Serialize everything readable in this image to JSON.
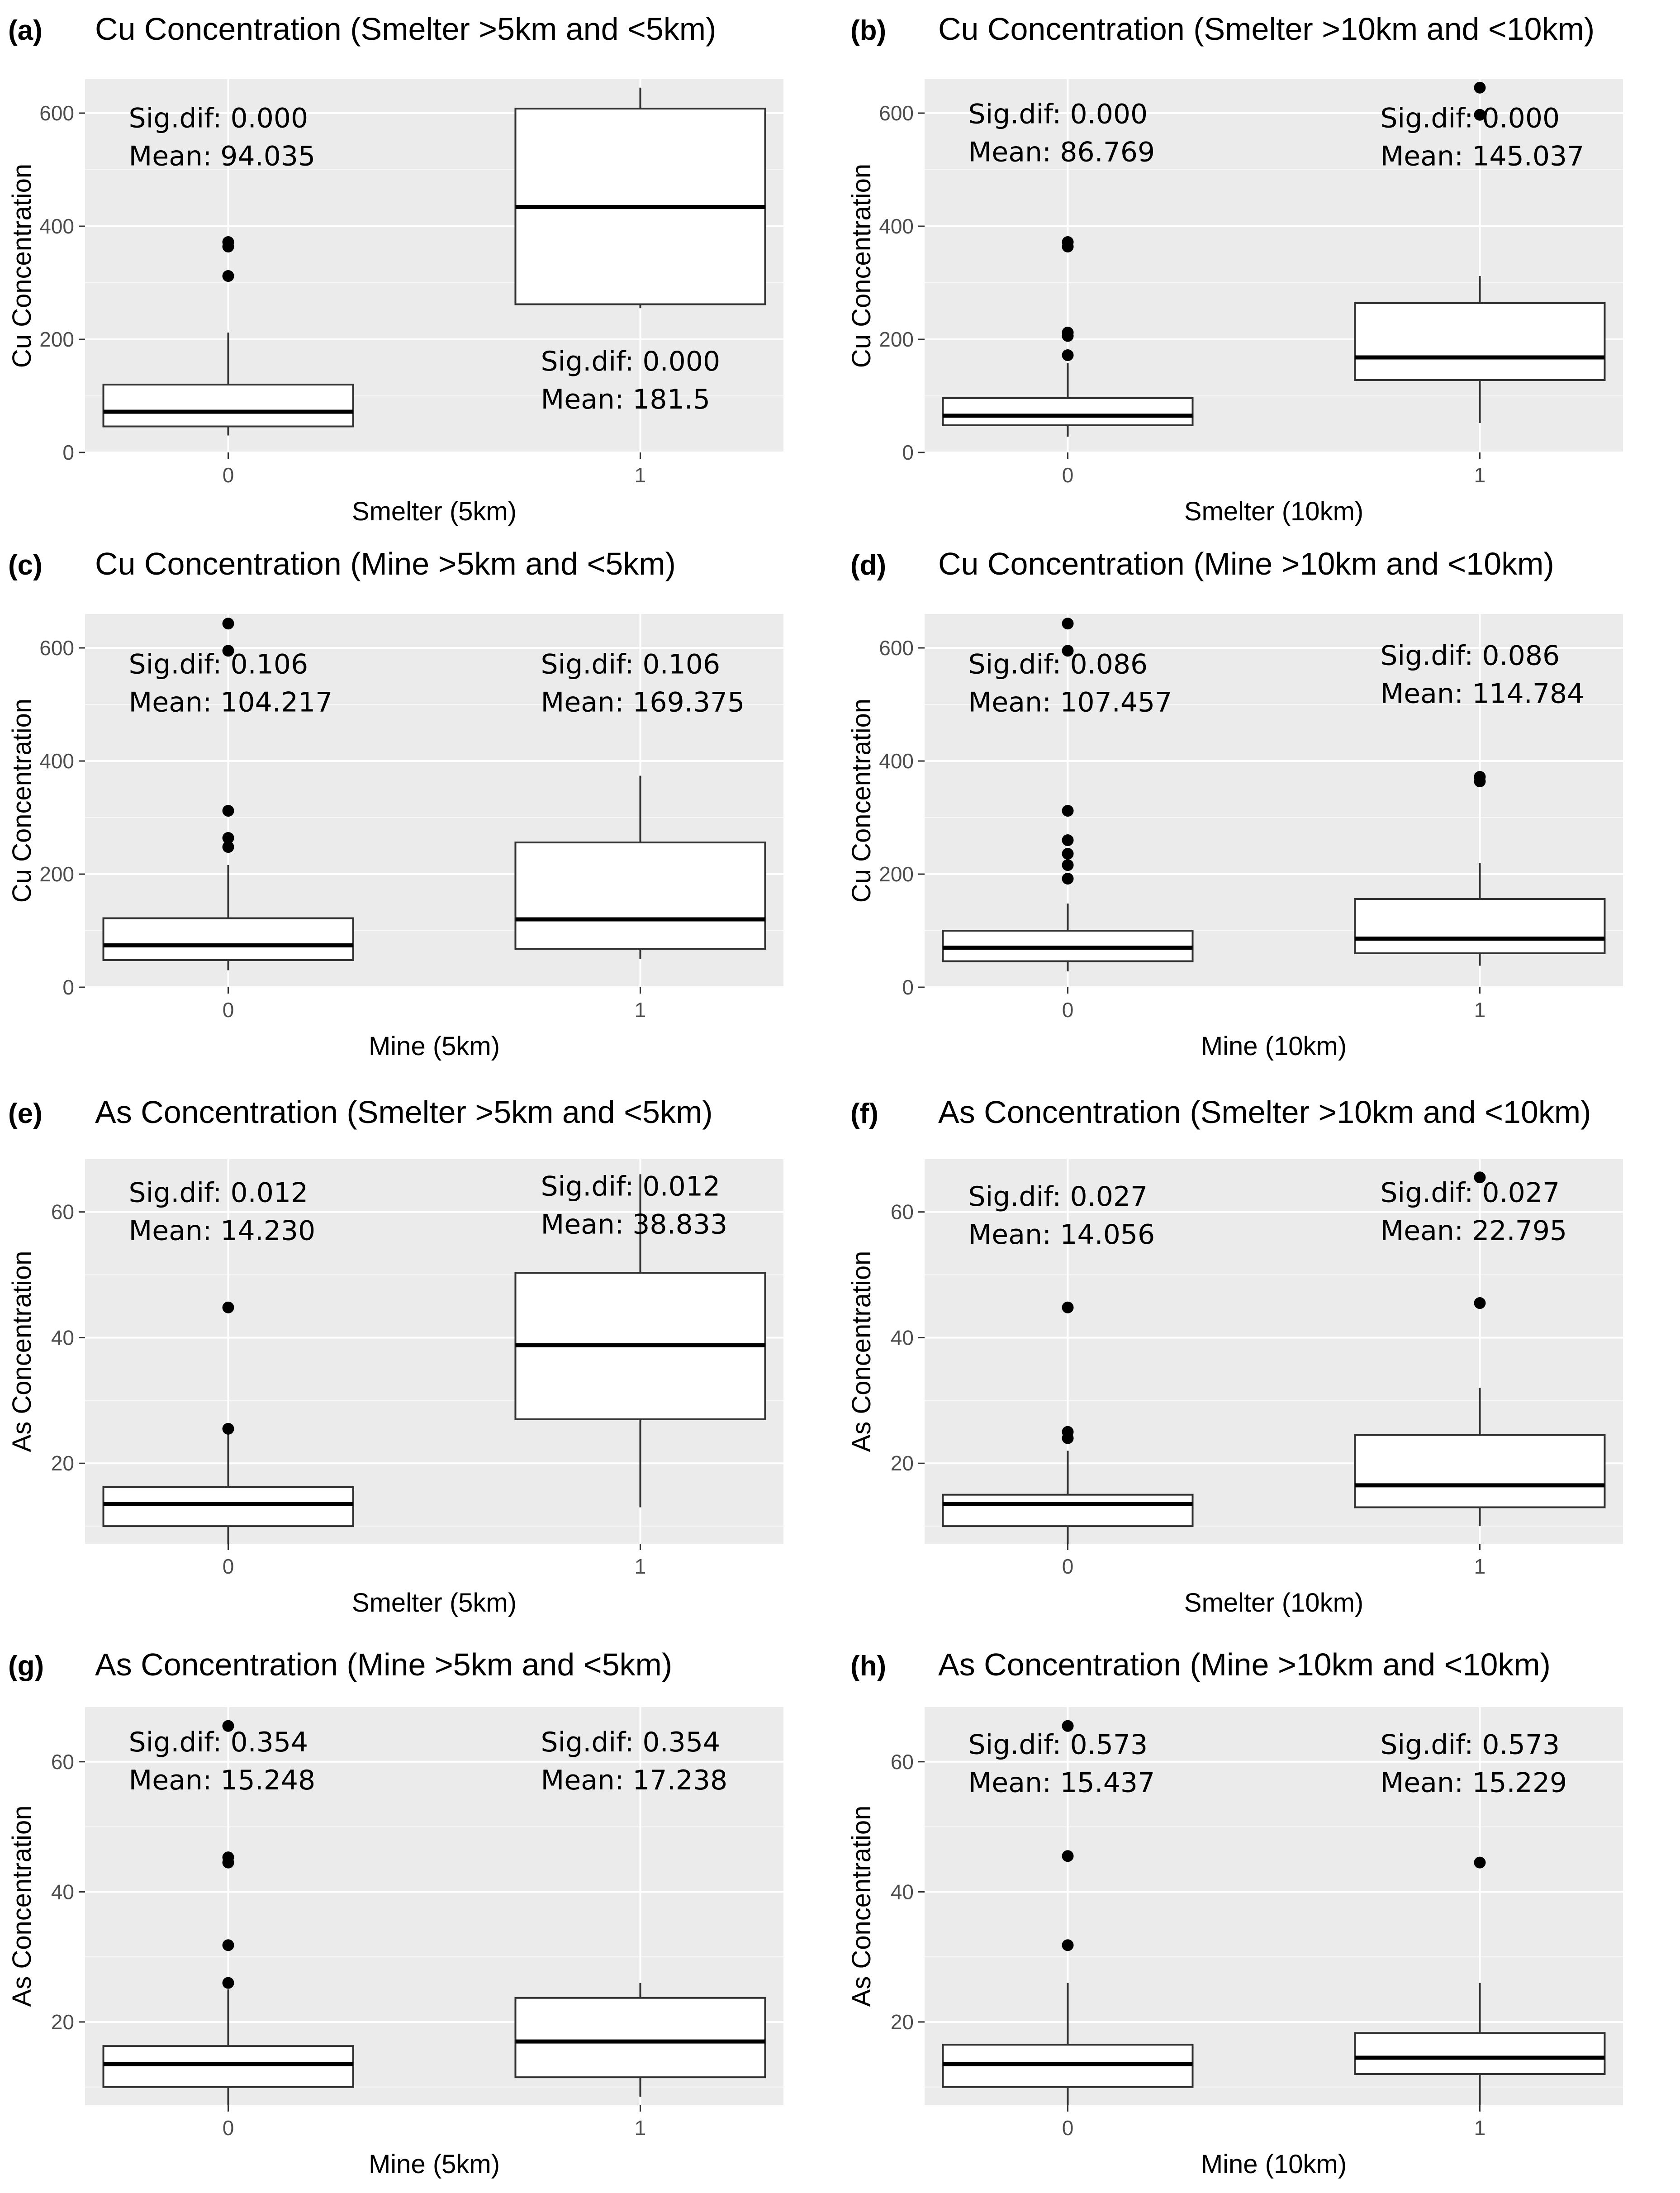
{
  "figure": {
    "panel_count": 8
  },
  "chart_data": [
    {
      "type": "box",
      "label": "(a)",
      "title": "Cu Concentration (Smelter >5km and <5km)",
      "xlabel": "Smelter (5km)",
      "ylabel": "Cu Concentration",
      "ylim": [
        0,
        660
      ],
      "yticks": [
        0,
        200,
        400,
        600
      ],
      "categories": [
        "0",
        "1"
      ],
      "boxes": [
        {
          "whisker_low": 30,
          "q1": 46,
          "median": 72,
          "q3": 120,
          "whisker_high": 212,
          "outliers": [
            312,
            364,
            372
          ]
        },
        {
          "whisker_low": 255,
          "q1": 262,
          "median": 434,
          "q3": 608,
          "whisker_high": 645,
          "outliers": []
        }
      ],
      "annotations": [
        {
          "category": "0",
          "value": 575,
          "sig": "Sig.dif: 0.000",
          "mean": "Mean: 94.035"
        },
        {
          "category": "1",
          "value": 145,
          "sig": "Sig.dif: 0.000",
          "mean": "Mean: 181.5"
        }
      ]
    },
    {
      "type": "box",
      "label": "(b)",
      "title": "Cu Concentration (Smelter >10km and <10km)",
      "xlabel": "Smelter (10km)",
      "ylabel": "Cu Concentration",
      "ylim": [
        0,
        660
      ],
      "yticks": [
        0,
        200,
        400,
        600
      ],
      "categories": [
        "0",
        "1"
      ],
      "boxes": [
        {
          "whisker_low": 28,
          "q1": 48,
          "median": 65,
          "q3": 96,
          "whisker_high": 158,
          "outliers": [
            172,
            206,
            212,
            364,
            372
          ]
        },
        {
          "whisker_low": 52,
          "q1": 128,
          "median": 168,
          "q3": 264,
          "whisker_high": 312,
          "outliers": [
            597,
            645
          ]
        }
      ],
      "annotations": [
        {
          "category": "0",
          "value": 582,
          "sig": "Sig.dif: 0.000",
          "mean": "Mean: 86.769"
        },
        {
          "category": "1",
          "value": 575,
          "sig": "Sig.dif: 0.000",
          "mean": "Mean: 145.037"
        }
      ]
    },
    {
      "type": "box",
      "label": "(c)",
      "title": "Cu Concentration (Mine >5km and <5km)",
      "xlabel": "Mine (5km)",
      "ylabel": "Cu Concentration",
      "ylim": [
        0,
        660
      ],
      "yticks": [
        0,
        200,
        400,
        600
      ],
      "categories": [
        "0",
        "1"
      ],
      "boxes": [
        {
          "whisker_low": 30,
          "q1": 48,
          "median": 74,
          "q3": 122,
          "whisker_high": 216,
          "outliers": [
            248,
            264,
            312,
            595,
            643
          ]
        },
        {
          "whisker_low": 50,
          "q1": 68,
          "median": 120,
          "q3": 256,
          "whisker_high": 374,
          "outliers": []
        }
      ],
      "annotations": [
        {
          "category": "0",
          "value": 555,
          "sig": "Sig.dif: 0.106",
          "mean": "Mean: 104.217"
        },
        {
          "category": "1",
          "value": 555,
          "sig": "Sig.dif: 0.106",
          "mean": "Mean: 169.375"
        }
      ]
    },
    {
      "type": "box",
      "label": "(d)",
      "title": "Cu Concentration (Mine >10km and <10km)",
      "xlabel": "Mine (10km)",
      "ylabel": "Cu Concentration",
      "ylim": [
        0,
        660
      ],
      "yticks": [
        0,
        200,
        400,
        600
      ],
      "categories": [
        "0",
        "1"
      ],
      "boxes": [
        {
          "whisker_low": 28,
          "q1": 46,
          "median": 70,
          "q3": 100,
          "whisker_high": 148,
          "outliers": [
            192,
            216,
            236,
            260,
            312,
            595,
            643
          ]
        },
        {
          "whisker_low": 38,
          "q1": 60,
          "median": 86,
          "q3": 156,
          "whisker_high": 220,
          "outliers": [
            364,
            372
          ]
        }
      ],
      "annotations": [
        {
          "category": "0",
          "value": 555,
          "sig": "Sig.dif: 0.086",
          "mean": "Mean: 107.457"
        },
        {
          "category": "1",
          "value": 570,
          "sig": "Sig.dif: 0.086",
          "mean": "Mean: 114.784"
        }
      ]
    },
    {
      "type": "box",
      "label": "(e)",
      "title": "As Concentration (Smelter >5km and <5km)",
      "xlabel": "Smelter (5km)",
      "ylabel": "As Concentration",
      "ylim": [
        7.2,
        68.4
      ],
      "yticks": [
        20,
        40,
        60
      ],
      "categories": [
        "0",
        "1"
      ],
      "boxes": [
        {
          "whisker_low": 6.5,
          "q1": 10,
          "median": 13.5,
          "q3": 16.2,
          "whisker_high": 25,
          "outliers": [
            25.5,
            44.8
          ]
        },
        {
          "whisker_low": 13,
          "q1": 27,
          "median": 38.8,
          "q3": 50.3,
          "whisker_high": 66,
          "outliers": []
        }
      ],
      "annotations": [
        {
          "category": "0",
          "value": 61.6,
          "sig": "Sig.dif: 0.012",
          "mean": "Mean: 14.230"
        },
        {
          "category": "1",
          "value": 62.6,
          "sig": "Sig.dif: 0.012",
          "mean": "Mean: 38.833"
        }
      ]
    },
    {
      "type": "box",
      "label": "(f)",
      "title": "As Concentration (Smelter >10km and <10km)",
      "xlabel": "Smelter (10km)",
      "ylabel": "As Concentration",
      "ylim": [
        7.2,
        68.4
      ],
      "yticks": [
        20,
        40,
        60
      ],
      "categories": [
        "0",
        "1"
      ],
      "boxes": [
        {
          "whisker_low": 6.5,
          "q1": 10,
          "median": 13.5,
          "q3": 15,
          "whisker_high": 22,
          "outliers": [
            24,
            25,
            44.8
          ]
        },
        {
          "whisker_low": 10,
          "q1": 13,
          "median": 16.5,
          "q3": 24.5,
          "whisker_high": 32,
          "outliers": [
            45.5,
            65.5
          ]
        }
      ],
      "annotations": [
        {
          "category": "0",
          "value": 61.0,
          "sig": "Sig.dif: 0.027",
          "mean": "Mean: 14.056"
        },
        {
          "category": "1",
          "value": 61.6,
          "sig": "Sig.dif: 0.027",
          "mean": "Mean: 22.795"
        }
      ]
    },
    {
      "type": "box",
      "label": "(g)",
      "title": "As Concentration (Mine >5km and <5km)",
      "xlabel": "Mine (5km)",
      "ylabel": "As Concentration",
      "ylim": [
        7.2,
        68.4
      ],
      "yticks": [
        20,
        40,
        60
      ],
      "categories": [
        "0",
        "1"
      ],
      "boxes": [
        {
          "whisker_low": 6.5,
          "q1": 10,
          "median": 13.5,
          "q3": 16.3,
          "whisker_high": 25,
          "outliers": [
            26,
            31.8,
            44.5,
            45.3,
            65.5
          ]
        },
        {
          "whisker_low": 8.5,
          "q1": 11.5,
          "median": 17,
          "q3": 23.7,
          "whisker_high": 26,
          "outliers": []
        }
      ],
      "annotations": [
        {
          "category": "0",
          "value": 61.6,
          "sig": "Sig.dif: 0.354",
          "mean": "Mean: 15.248"
        },
        {
          "category": "1",
          "value": 61.6,
          "sig": "Sig.dif: 0.354",
          "mean": "Mean: 17.238"
        }
      ]
    },
    {
      "type": "box",
      "label": "(h)",
      "title": "As Concentration (Mine >10km and <10km)",
      "xlabel": "Mine (10km)",
      "ylabel": "As Concentration",
      "ylim": [
        7.2,
        68.4
      ],
      "yticks": [
        20,
        40,
        60
      ],
      "categories": [
        "0",
        "1"
      ],
      "boxes": [
        {
          "whisker_low": 6.5,
          "q1": 10,
          "median": 13.5,
          "q3": 16.5,
          "whisker_high": 26,
          "outliers": [
            31.8,
            45.5,
            65.5
          ]
        },
        {
          "whisker_low": 6.5,
          "q1": 12,
          "median": 14.5,
          "q3": 18.3,
          "whisker_high": 26,
          "outliers": [
            44.5
          ]
        }
      ],
      "annotations": [
        {
          "category": "0",
          "value": 61.2,
          "sig": "Sig.dif: 0.573",
          "mean": "Mean: 15.437"
        },
        {
          "category": "1",
          "value": 61.2,
          "sig": "Sig.dif: 0.573",
          "mean": "Mean: 15.229"
        }
      ]
    }
  ]
}
